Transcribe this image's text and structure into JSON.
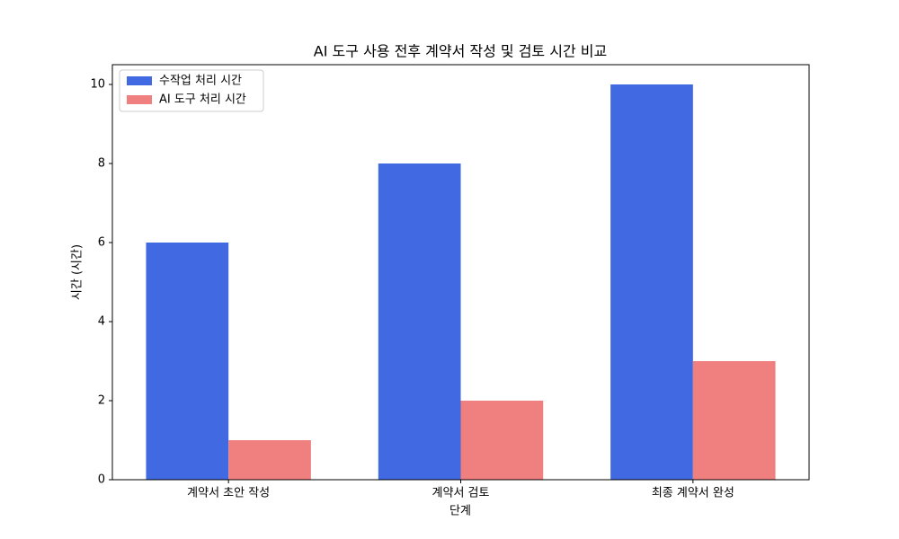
{
  "chart_data": {
    "type": "bar",
    "title": "AI 도구 사용 전후 계약서 작성 및 검토 시간 비교",
    "x_label": "단계",
    "y_label": "시간 (시간)",
    "categories": [
      "계약서 초안 작성",
      "계약서 검토",
      "최종 계약서 완성"
    ],
    "series": [
      {
        "name": "수작업 처리 시간",
        "color": "#4169e1",
        "values": [
          6,
          8,
          10
        ]
      },
      {
        "name": "AI 도구 처리 시간",
        "color": "#f08080",
        "values": [
          1,
          2,
          3
        ]
      }
    ],
    "ylim": [
      0,
      10.5
    ],
    "yticks": [
      0,
      2,
      4,
      6,
      8,
      10
    ],
    "grid": false,
    "legend": "upper left"
  }
}
